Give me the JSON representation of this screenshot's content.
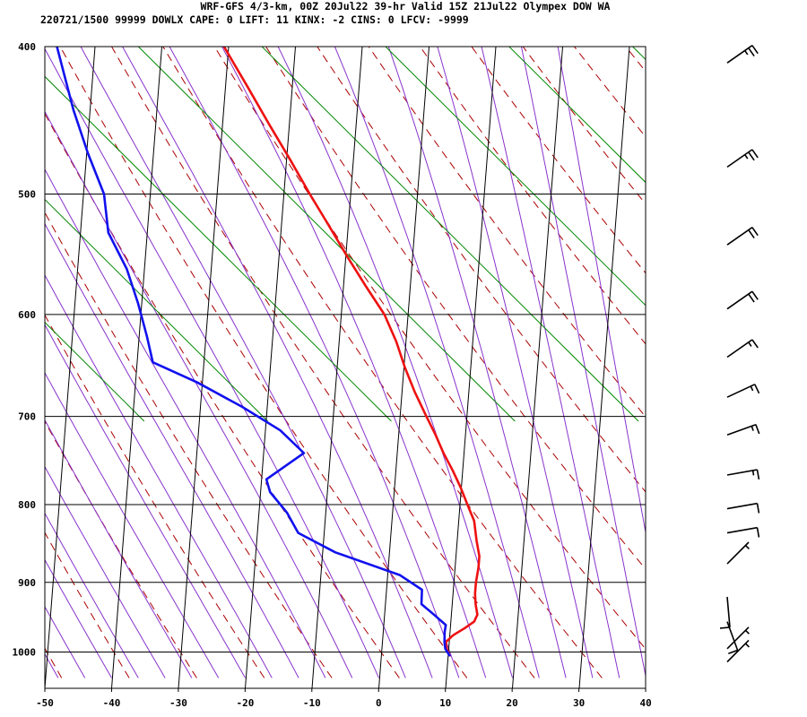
{
  "header": {
    "line1": "WRF-GFS 4/3-km, 00Z 20Jul22 39-hr Valid 15Z 21Jul22 Olympex DOW WA",
    "line2": "220721/1500 99999  DOWLX   CAPE:     0 LIFT:    11 KINX:    -2 CINS:     0 LFCV: -9999"
  },
  "chart_data": {
    "type": "line",
    "subtype": "skew-T log-p sounding",
    "xlabel": "",
    "ylabel": "",
    "xlim": [
      -50,
      40
    ],
    "ylim": [
      1040,
      400
    ],
    "x_ticks": [
      "-50",
      "-40",
      "-30",
      "-20",
      "-10",
      "0",
      "10",
      "20",
      "30",
      "40"
    ],
    "y_ticks": [
      "400",
      "500",
      "600",
      "700",
      "800",
      "900",
      "1000"
    ],
    "series": [
      {
        "color": "#ee1111",
        "points": [
          [
            10.3,
            1005
          ],
          [
            9.8,
            995
          ],
          [
            9.6,
            985
          ],
          [
            10.6,
            975
          ],
          [
            12.2,
            965
          ],
          [
            13.6,
            955
          ],
          [
            14.0,
            945
          ],
          [
            13.6,
            930
          ],
          [
            13.4,
            915
          ],
          [
            13.4,
            900
          ],
          [
            13.6,
            880
          ],
          [
            13.6,
            865
          ],
          [
            13.0,
            845
          ],
          [
            12.4,
            820
          ],
          [
            11.2,
            800
          ],
          [
            10.0,
            780
          ],
          [
            8.6,
            760
          ],
          [
            7.0,
            740
          ],
          [
            5.6,
            720
          ],
          [
            4.0,
            700
          ],
          [
            2.0,
            675
          ],
          [
            0.2,
            650
          ],
          [
            -1.4,
            625
          ],
          [
            -3.5,
            600
          ],
          [
            -6.6,
            575
          ],
          [
            -9.7,
            550
          ],
          [
            -12.8,
            525
          ],
          [
            -16.1,
            500
          ],
          [
            -19.4,
            475
          ],
          [
            -23.0,
            450
          ],
          [
            -26.7,
            425
          ],
          [
            -30.7,
            400
          ]
        ]
      },
      {
        "color": "#1111ee",
        "points": [
          [
            10.3,
            1005
          ],
          [
            9.6,
            995
          ],
          [
            9.4,
            985
          ],
          [
            9.3,
            970
          ],
          [
            9.4,
            960
          ],
          [
            7.5,
            945
          ],
          [
            5.5,
            930
          ],
          [
            5.4,
            910
          ],
          [
            1.9,
            890
          ],
          [
            -8.0,
            860
          ],
          [
            -13.8,
            835
          ],
          [
            -15.7,
            810
          ],
          [
            -18.5,
            785
          ],
          [
            -19.2,
            770
          ],
          [
            -13.9,
            740
          ],
          [
            -17.7,
            715
          ],
          [
            -23.7,
            690
          ],
          [
            -30.7,
            665
          ],
          [
            -37.6,
            645
          ],
          [
            -38.8,
            620
          ],
          [
            -40.5,
            590
          ],
          [
            -42.6,
            560
          ],
          [
            -45.8,
            530
          ],
          [
            -46.9,
            500
          ],
          [
            -49.8,
            470
          ],
          [
            -52.5,
            440
          ],
          [
            -55.7,
            400
          ]
        ]
      }
    ],
    "grid": true,
    "wind_barbs": [
      {
        "p": 410,
        "dir": 235,
        "spd": 25
      },
      {
        "p": 480,
        "dir": 235,
        "spd": 25
      },
      {
        "p": 540,
        "dir": 235,
        "spd": 20
      },
      {
        "p": 595,
        "dir": 235,
        "spd": 20
      },
      {
        "p": 640,
        "dir": 235,
        "spd": 15
      },
      {
        "p": 680,
        "dir": 245,
        "spd": 15
      },
      {
        "p": 720,
        "dir": 250,
        "spd": 15
      },
      {
        "p": 765,
        "dir": 260,
        "spd": 15
      },
      {
        "p": 805,
        "dir": 260,
        "spd": 10
      },
      {
        "p": 835,
        "dir": 260,
        "spd": 10
      },
      {
        "p": 875,
        "dir": 225,
        "spd": 5
      },
      {
        "p": 920,
        "dir": 355,
        "spd": 10
      },
      {
        "p": 955,
        "dir": 340,
        "spd": 10
      },
      {
        "p": 995,
        "dir": 225,
        "spd": 5
      },
      {
        "p": 1015,
        "dir": 225,
        "spd": 5
      }
    ]
  }
}
